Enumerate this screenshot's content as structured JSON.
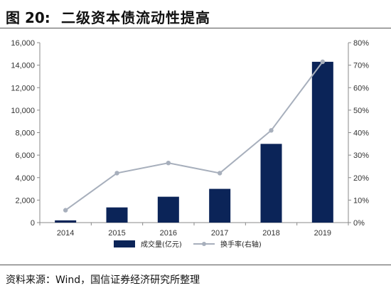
{
  "header": {
    "fig_num": "图 20:",
    "title": "二级资本债流动性提高"
  },
  "source": "资料来源：Wind，国信证券经济研究所整理",
  "colors": {
    "bar": "#0B2458",
    "line": "#A7AFBC",
    "axis": "#888888"
  },
  "chart_data": {
    "type": "bar",
    "categories": [
      "2014",
      "2015",
      "2016",
      "2017",
      "2018",
      "2019"
    ],
    "series": [
      {
        "name": "成交量(亿元)",
        "type": "bar",
        "axis": "left",
        "values": [
          200,
          1350,
          2300,
          3000,
          7000,
          14300
        ]
      },
      {
        "name": "换手率(右轴)",
        "type": "line",
        "axis": "right",
        "values": [
          5.5,
          22.0,
          26.5,
          22.0,
          41.0,
          71.5
        ]
      }
    ],
    "y_left": {
      "min": 0,
      "max": 16000,
      "ticks": [
        "0",
        "2,000",
        "4,000",
        "6,000",
        "8,000",
        "10,000",
        "12,000",
        "14,000",
        "16,000"
      ]
    },
    "y_right": {
      "min": 0,
      "max": 80,
      "ticks": [
        "0%",
        "10%",
        "20%",
        "30%",
        "40%",
        "50%",
        "60%",
        "70%",
        "80%"
      ]
    },
    "legend_position": "bottom"
  }
}
